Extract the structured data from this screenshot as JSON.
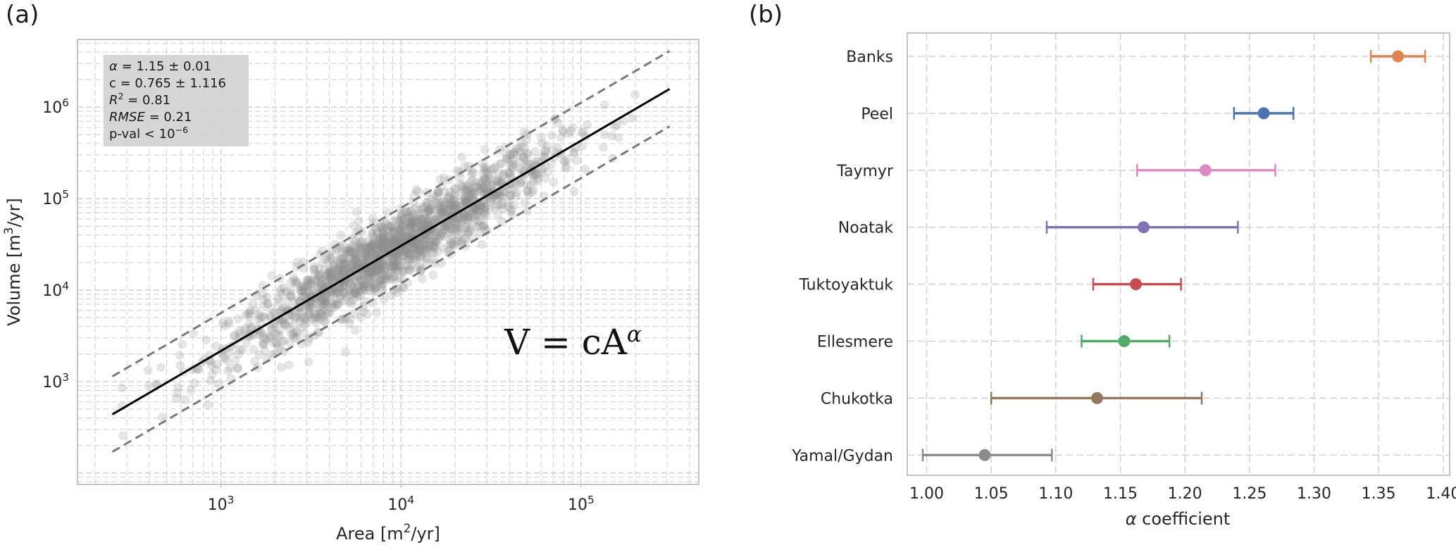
{
  "panel_a": {
    "label": "(a)",
    "stats_lines": [
      {
        "id": "alpha",
        "parts": [
          {
            "t": "α",
            "i": true
          },
          {
            "t": " = 1.15 ± 0.01"
          }
        ]
      },
      {
        "id": "c",
        "parts": [
          {
            "t": "c = 0.765 ± 1.116"
          }
        ]
      },
      {
        "id": "r2",
        "parts": [
          {
            "t": "R",
            "i": true
          },
          {
            "t": "2",
            "sup": true
          },
          {
            "t": " = 0.81"
          }
        ]
      },
      {
        "id": "rmse",
        "parts": [
          {
            "t": "RMSE",
            "i": true
          },
          {
            "t": " = 0.21"
          }
        ]
      },
      {
        "id": "pval",
        "parts": [
          {
            "t": "p-val  < 10"
          },
          {
            "t": "−6",
            "sup": true
          }
        ]
      }
    ],
    "equation": {
      "base": "V = cA",
      "exp": "α"
    },
    "xlabel": {
      "pre": "Area [m",
      "sup": "2",
      "post": "/yr]"
    },
    "ylabel": {
      "pre": "Volume [m",
      "sup": "3",
      "post": "/yr]"
    },
    "xticks": [
      {
        "base": "10",
        "exp": "3",
        "value": 1000
      },
      {
        "base": "10",
        "exp": "4",
        "value": 10000
      },
      {
        "base": "10",
        "exp": "5",
        "value": 100000
      }
    ],
    "yticks": [
      {
        "base": "10",
        "exp": "3",
        "value": 1000
      },
      {
        "base": "10",
        "exp": "4",
        "value": 10000
      },
      {
        "base": "10",
        "exp": "5",
        "value": 100000
      },
      {
        "base": "10",
        "exp": "6",
        "value": 1000000
      }
    ]
  },
  "panel_b": {
    "label": "(b)",
    "xlabel": {
      "sym": "α",
      "text": " coefficient"
    },
    "xticks": [
      "1.00",
      "1.05",
      "1.10",
      "1.15",
      "1.20",
      "1.25",
      "1.30",
      "1.35",
      "1.40"
    ]
  },
  "chart_data": [
    {
      "type": "scatter",
      "scale": {
        "x": "log",
        "y": "log"
      },
      "xlabel": "Area [m²/yr]",
      "ylabel": "Volume [m³/yr]",
      "xlim": [
        160,
        450000
      ],
      "ylim": [
        75,
        5500000
      ],
      "grid": true,
      "fit": {
        "alpha": 1.15,
        "c": 0.765,
        "x_range": [
          250,
          310000
        ]
      },
      "bands": {
        "upper_factor": 2.6,
        "lower_factor": 0.39
      },
      "point_cloud": {
        "n": 1700,
        "x_log10_mean": 3.95,
        "x_log10_sd": 0.45,
        "residual_log10_sd": 0.2,
        "color": "#8c8c8c"
      },
      "annotations": [
        "α = 1.15 ± 0.01",
        "c = 0.765 ± 1.116",
        "R² = 0.81",
        "RMSE = 0.21",
        "p-val < 10⁻⁶",
        "V = cA^α"
      ]
    },
    {
      "type": "scatter",
      "xlabel": "α coefficient",
      "xlim": [
        0.985,
        1.405
      ],
      "grid": true,
      "categories": [
        "Banks",
        "Peel",
        "Taymyr",
        "Noatak",
        "Tuktoyaktuk",
        "Ellesmere",
        "Chukotka",
        "Yamal/Gydan"
      ],
      "values": [
        1.365,
        1.261,
        1.216,
        1.168,
        1.162,
        1.153,
        1.132,
        1.045
      ],
      "err_low": [
        1.344,
        1.238,
        1.163,
        1.093,
        1.129,
        1.12,
        1.05,
        0.997
      ],
      "err_high": [
        1.386,
        1.284,
        1.27,
        1.241,
        1.197,
        1.188,
        1.213,
        1.097
      ],
      "colors": [
        "#dd8452",
        "#4c72b0",
        "#da8bc3",
        "#8172b3",
        "#c44e52",
        "#55a868",
        "#937860",
        "#8c8c8c"
      ]
    }
  ]
}
